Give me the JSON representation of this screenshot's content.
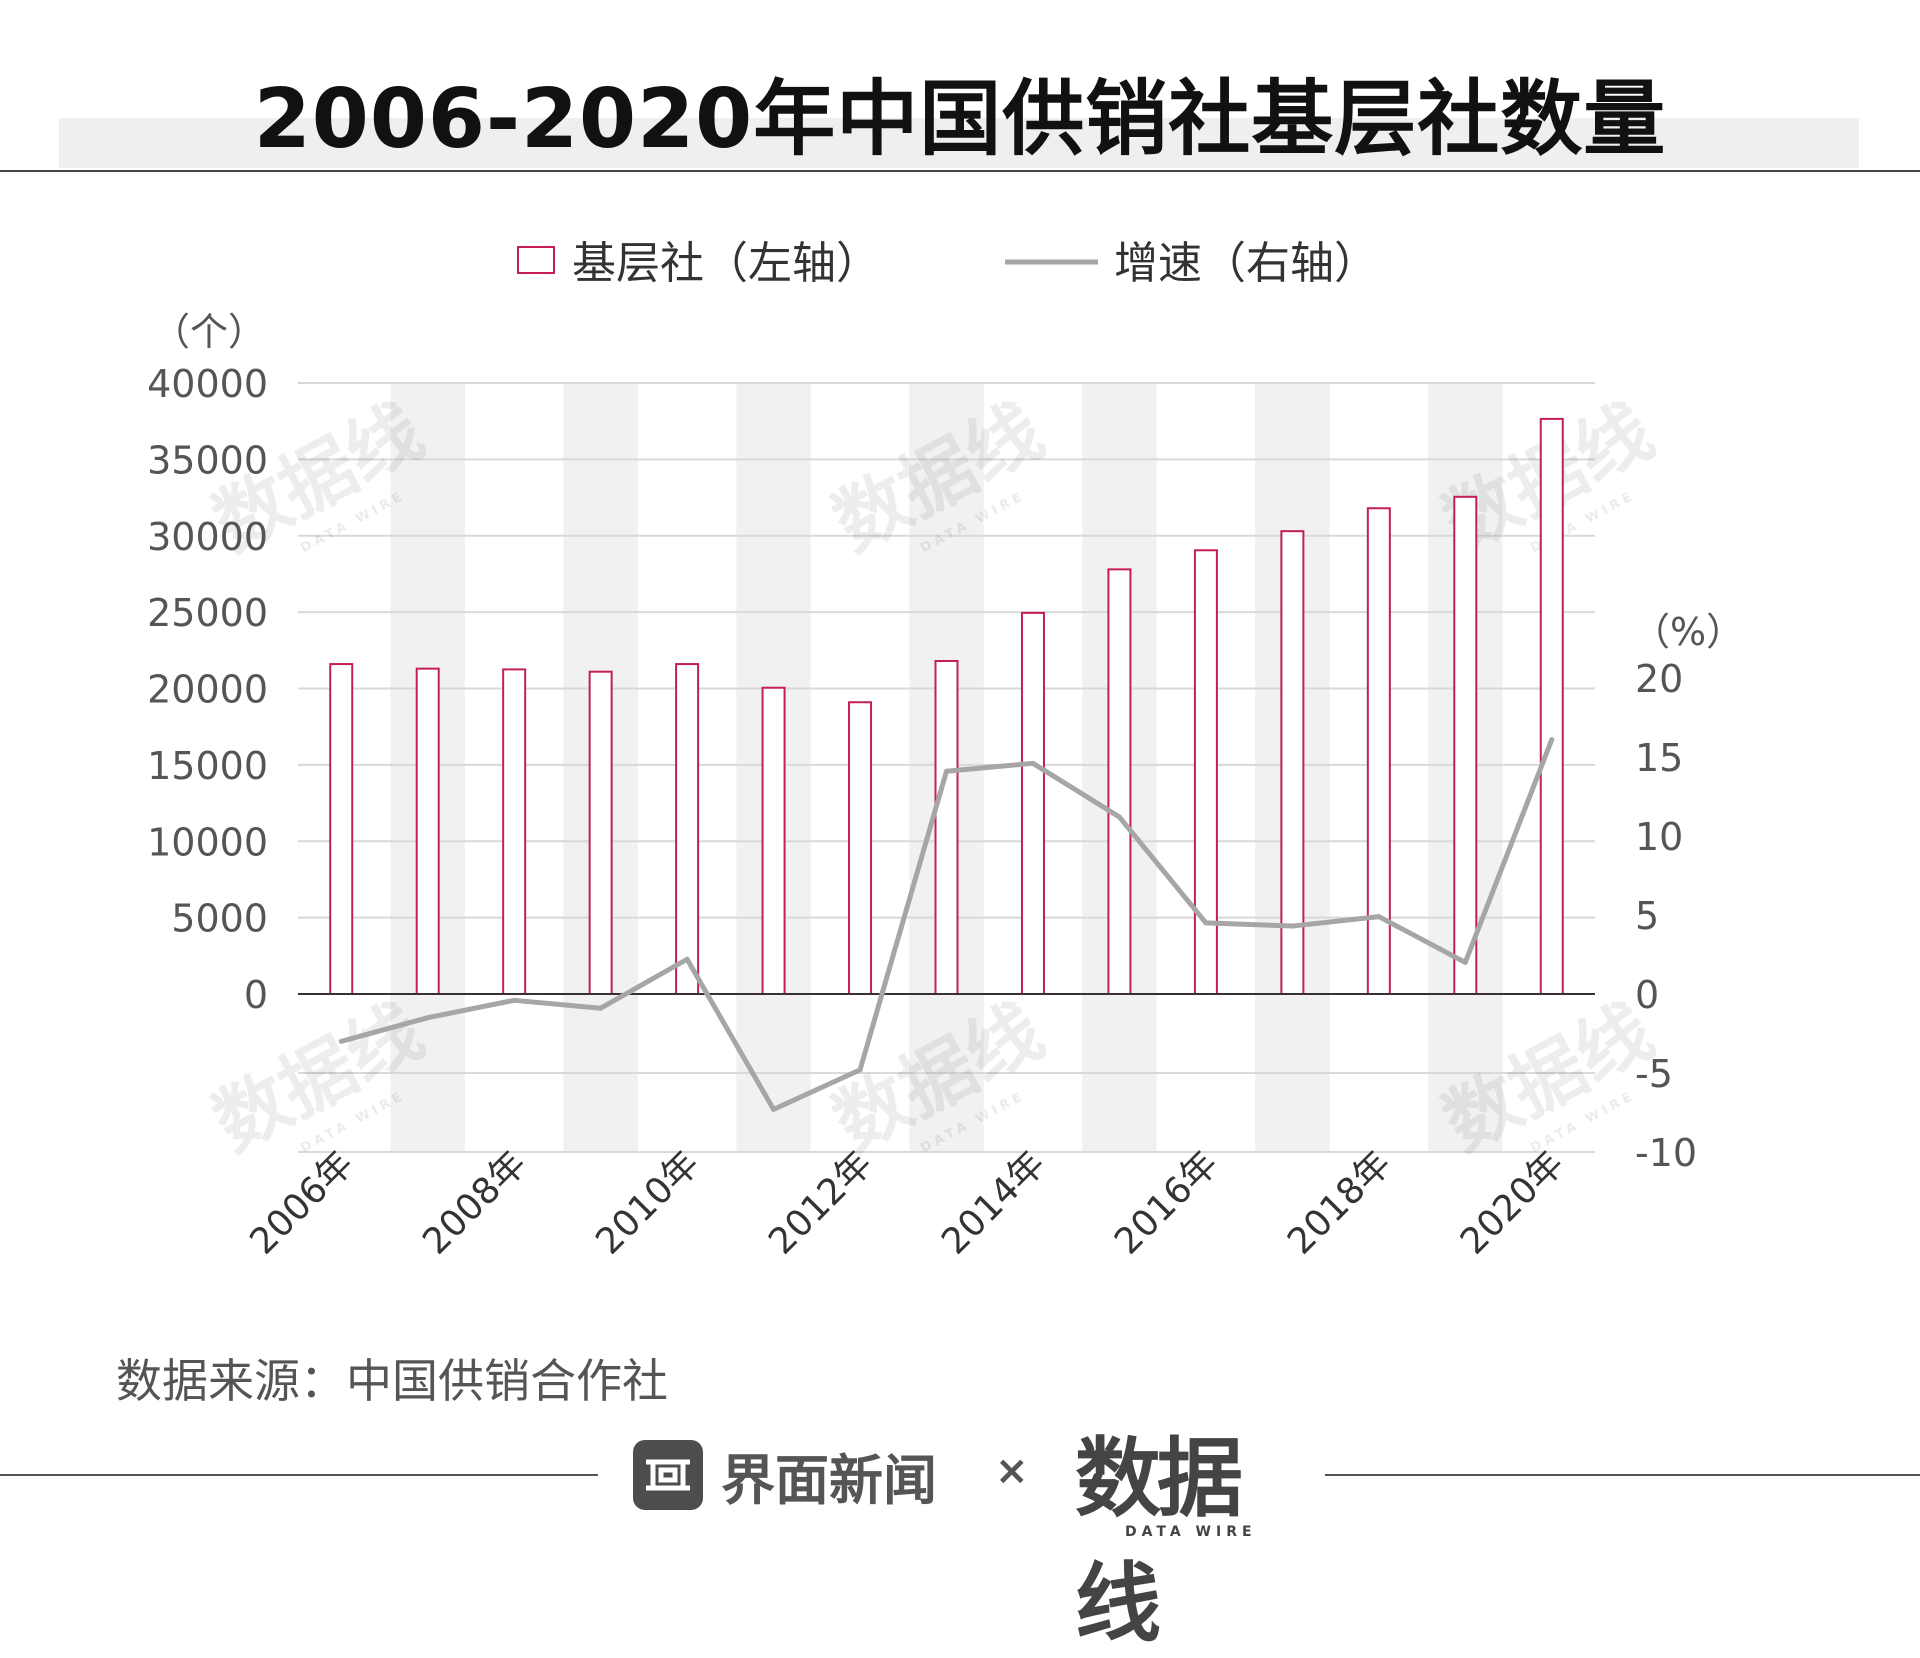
{
  "header": {
    "title": "2006-2020年中国供销社基层社数量"
  },
  "legend": {
    "bar_label": "基层社（左轴）",
    "line_label": "增速（右轴）"
  },
  "footer": {
    "source": "数据来源：中国供销合作社",
    "brand_left": "界面新闻",
    "separator": "×",
    "brand_right": "数据线",
    "brand_right_sub": "DATA WIRE"
  },
  "watermark": {
    "text": "数据线",
    "sub": "DATA WIRE"
  },
  "colors": {
    "bar_stroke": "#c41e5a",
    "line": "#a6a6a6",
    "grid": "#d9d9d9",
    "band": "#f1f1f1",
    "axis": "#333333"
  },
  "chart_data": {
    "type": "bar+line",
    "categories": [
      "2006年",
      "2007年",
      "2008年",
      "2009年",
      "2010年",
      "2011年",
      "2012年",
      "2013年",
      "2014年",
      "2015年",
      "2016年",
      "2017年",
      "2018年",
      "2019年",
      "2020年"
    ],
    "x_tick_labels": [
      "2006年",
      "2008年",
      "2010年",
      "2012年",
      "2014年",
      "2016年",
      "2018年",
      "2020年"
    ],
    "series": [
      {
        "name": "基层社",
        "axis": "left",
        "type": "bar",
        "values": [
          21600,
          21300,
          21250,
          21100,
          21600,
          20050,
          19100,
          21800,
          24950,
          27800,
          29050,
          30300,
          31800,
          32550,
          37650
        ]
      },
      {
        "name": "增速",
        "axis": "right",
        "type": "line",
        "values": [
          -3.0,
          -1.5,
          -0.4,
          -0.9,
          2.2,
          -7.3,
          -4.8,
          14.1,
          14.6,
          11.2,
          4.5,
          4.3,
          4.9,
          2.0,
          16.1
        ]
      }
    ],
    "y_left": {
      "unit": "（个）",
      "min": 0,
      "max": 40000,
      "ticks": [
        0,
        5000,
        10000,
        15000,
        20000,
        25000,
        30000,
        35000,
        40000
      ]
    },
    "y_right": {
      "unit": "（%）",
      "min": -10,
      "max": 20,
      "ticks": [
        -10,
        -5,
        0,
        5,
        10,
        15,
        20
      ]
    },
    "grid": true,
    "legend_position": "top-center"
  }
}
